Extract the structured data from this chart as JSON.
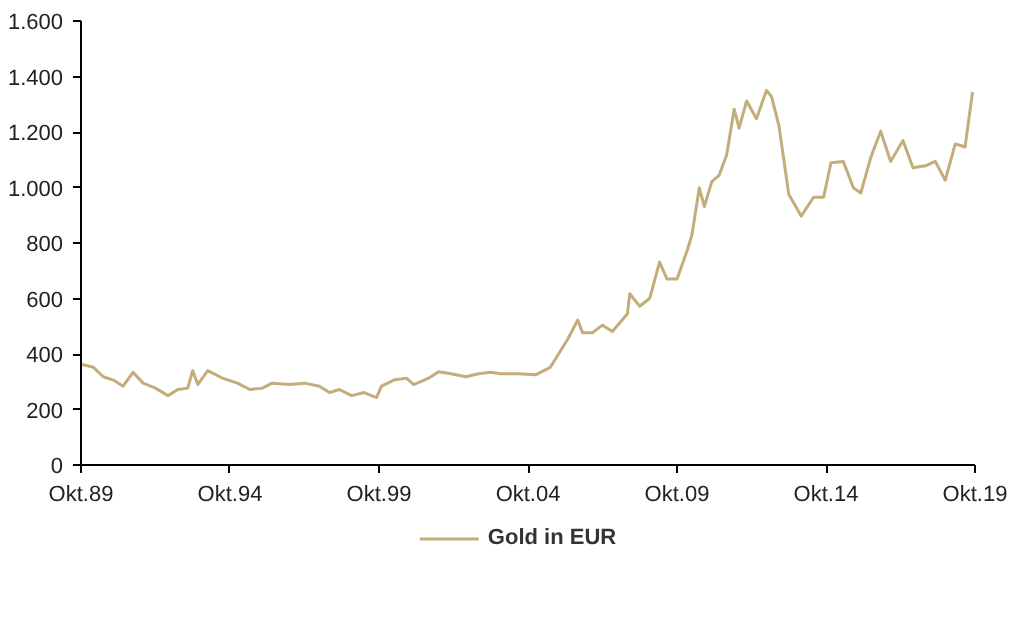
{
  "chart_data": {
    "type": "line",
    "x": [
      "1989-10",
      "1990-03",
      "1990-07",
      "1990-11",
      "1991-03",
      "1991-07",
      "1991-11",
      "1992-04",
      "1992-09",
      "1993-01",
      "1993-05",
      "1993-07",
      "1993-09",
      "1994-01",
      "1994-07",
      "1995-01",
      "1995-06",
      "1995-11",
      "1996-03",
      "1996-10",
      "1997-04",
      "1997-10",
      "1998-02",
      "1998-06",
      "1998-11",
      "1999-04",
      "1999-09",
      "1999-11",
      "2000-04",
      "2000-09",
      "2000-12",
      "2001-06",
      "2001-10",
      "2002-03",
      "2002-09",
      "2003-02",
      "2003-07",
      "2003-11",
      "2004-06",
      "2005-01",
      "2005-07",
      "2006-02",
      "2006-06",
      "2006-08",
      "2006-12",
      "2007-04",
      "2007-08",
      "2008-02",
      "2008-03",
      "2008-07",
      "2008-11",
      "2009-03",
      "2009-06",
      "2009-10",
      "2010-02",
      "2010-04",
      "2010-07",
      "2010-09",
      "2010-12",
      "2011-03",
      "2011-06",
      "2011-09",
      "2011-11",
      "2012-02",
      "2012-06",
      "2012-10",
      "2012-12",
      "2013-03",
      "2013-07",
      "2013-12",
      "2014-05",
      "2014-09",
      "2014-12",
      "2015-05",
      "2015-09",
      "2015-12",
      "2016-04",
      "2016-08",
      "2016-12",
      "2017-05",
      "2017-09",
      "2018-02",
      "2018-06",
      "2018-10",
      "2019-02",
      "2019-06",
      "2019-09"
    ],
    "series": [
      {
        "name": "Gold in EUR",
        "color": "#c4ad7a",
        "values": [
          363,
          352,
          318,
          306,
          284,
          334,
          295,
          277,
          250,
          272,
          277,
          340,
          290,
          340,
          313,
          295,
          272,
          277,
          295,
          290,
          295,
          284,
          261,
          272,
          250,
          261,
          243,
          284,
          306,
          313,
          290,
          313,
          336,
          329,
          318,
          329,
          334,
          329,
          329,
          325,
          352,
          454,
          522,
          477,
          477,
          504,
          481,
          545,
          617,
          572,
          601,
          731,
          670,
          670,
          772,
          828,
          999,
          931,
          1021,
          1044,
          1117,
          1282,
          1214,
          1312,
          1248,
          1350,
          1328,
          1226,
          976,
          897,
          965,
          965,
          1089,
          1094,
          999,
          980,
          1108,
          1203,
          1094,
          1169,
          1071,
          1078,
          1094,
          1026,
          1157,
          1146,
          1344
        ]
      }
    ],
    "xlim": [
      "1989-10",
      "2019-10"
    ],
    "xticks": [
      {
        "value": "1989-10",
        "label": "Okt.89"
      },
      {
        "value": "1994-10",
        "label": "Okt.94"
      },
      {
        "value": "1999-10",
        "label": "Okt.99"
      },
      {
        "value": "2004-10",
        "label": "Okt.04"
      },
      {
        "value": "2009-10",
        "label": "Okt.09"
      },
      {
        "value": "2014-10",
        "label": "Okt.14"
      },
      {
        "value": "2019-10",
        "label": "Okt.19"
      }
    ],
    "ylim": [
      0,
      1600
    ],
    "yticks": [
      {
        "value": 0,
        "label": "0"
      },
      {
        "value": 200,
        "label": "200"
      },
      {
        "value": 400,
        "label": "400"
      },
      {
        "value": 600,
        "label": "600"
      },
      {
        "value": 800,
        "label": "800"
      },
      {
        "value": 1000,
        "label": "1.000"
      },
      {
        "value": 1200,
        "label": "1.200"
      },
      {
        "value": 1400,
        "label": "1.400"
      },
      {
        "value": 1600,
        "label": "1.600"
      }
    ],
    "legend": "bottom",
    "line_style": "solid"
  }
}
